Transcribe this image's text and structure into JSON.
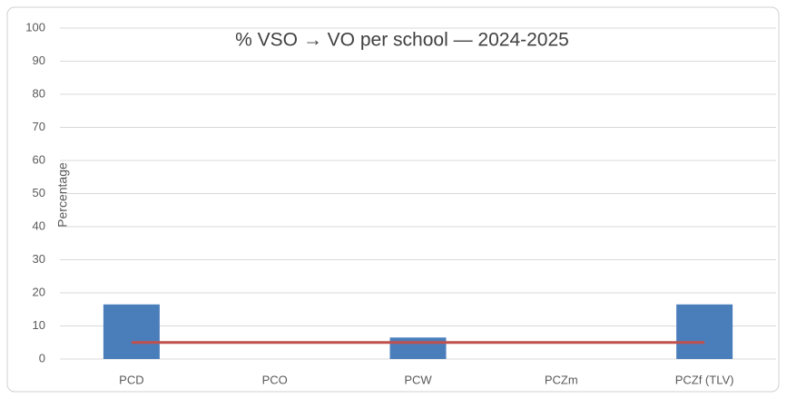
{
  "chart_data": {
    "type": "bar",
    "title": "% VSO → VO per school — 2024-2025",
    "y_label": "Percentage",
    "categories": [
      "PCD",
      "PCO",
      "PCW",
      "PCZm",
      "PCZf (TLV)"
    ],
    "series": [
      {
        "type": "bar",
        "color": "#4a7ebb",
        "values": [
          16.5,
          0,
          6.5,
          0,
          16.5
        ]
      },
      {
        "type": "line",
        "color": "#c0504d",
        "values": [
          5,
          5,
          5,
          5,
          5
        ]
      }
    ],
    "ylim": [
      0,
      100
    ],
    "yticks": [
      0,
      10,
      20,
      30,
      40,
      50,
      60,
      70,
      80,
      90,
      100
    ],
    "grid": true
  }
}
